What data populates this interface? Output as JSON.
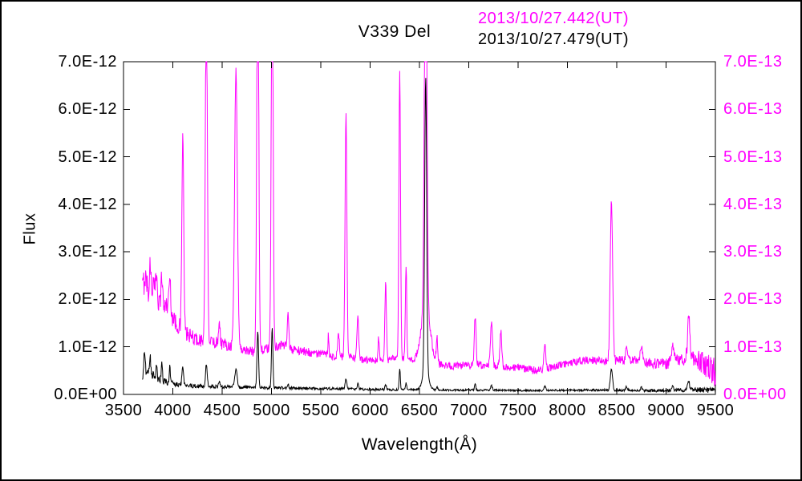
{
  "legend": [
    {
      "label": "2013/10/27.442(UT)",
      "color": "#ff00ff"
    },
    {
      "label": "2013/10/27.479(UT)",
      "color": "#000000"
    }
  ],
  "axes": {
    "x": {
      "min": 3500,
      "max": 9500,
      "tick_step": 500,
      "ticks": [
        "3500",
        "4000",
        "4500",
        "5000",
        "5500",
        "6000",
        "6500",
        "7000",
        "7500",
        "8000",
        "8500",
        "9000",
        "9500"
      ]
    },
    "y_left": {
      "color": "#000000",
      "ticks": [
        "0.0E+00",
        "1.0E-12",
        "2.0E-12",
        "3.0E-12",
        "4.0E-12",
        "5.0E-12",
        "6.0E-12",
        "7.0E-12"
      ]
    },
    "y_right": {
      "color": "#ff00ff",
      "ticks": [
        "0.0E+00",
        "1.0E-13",
        "2.0E-13",
        "3.0E-13",
        "4.0E-13",
        "5.0E-13",
        "6.0E-13",
        "7.0E-13"
      ]
    }
  },
  "chart_data": {
    "type": "line",
    "title": "V339 Del",
    "xlabel": "Wavelength(Å)",
    "ylabel": "Flux",
    "x_range": [
      3500,
      9500
    ],
    "x_tick_step": 500,
    "grid": false,
    "legend_position": "top-right",
    "left_y": {
      "lim": [
        0,
        7.0
      ],
      "unit_scale": "1e-12"
    },
    "right_y": {
      "lim": [
        0,
        7.0
      ],
      "unit_scale": "1e-13"
    },
    "series": [
      {
        "name": "2013/10/27.442(UT)",
        "color": "#ff00ff",
        "axis": "right",
        "unit_scale": "1e-13",
        "y_lim": [
          0,
          7.0
        ],
        "x_start": 3692,
        "x_end": 9500,
        "step": 4,
        "continuum": [
          [
            3690,
            2.2
          ],
          [
            3720,
            2.5
          ],
          [
            3760,
            2.1
          ],
          [
            3800,
            2.3
          ],
          [
            3850,
            2.0
          ],
          [
            3900,
            1.85
          ],
          [
            3950,
            1.9
          ],
          [
            4000,
            1.6
          ],
          [
            4050,
            1.45
          ],
          [
            4150,
            1.25
          ],
          [
            4250,
            1.15
          ],
          [
            4400,
            1.1
          ],
          [
            4550,
            1.05
          ],
          [
            4700,
            0.95
          ],
          [
            4800,
            0.9
          ],
          [
            4950,
            0.95
          ],
          [
            5100,
            1.05
          ],
          [
            5200,
            0.95
          ],
          [
            5350,
            0.9
          ],
          [
            5500,
            0.85
          ],
          [
            5650,
            0.8
          ],
          [
            5800,
            0.78
          ],
          [
            5950,
            0.72
          ],
          [
            6100,
            0.7
          ],
          [
            6250,
            0.75
          ],
          [
            6450,
            0.7
          ],
          [
            6650,
            0.65
          ],
          [
            6800,
            0.6
          ],
          [
            6950,
            0.6
          ],
          [
            7100,
            0.62
          ],
          [
            7250,
            0.6
          ],
          [
            7400,
            0.58
          ],
          [
            7550,
            0.55
          ],
          [
            7700,
            0.5
          ],
          [
            7900,
            0.6
          ],
          [
            8050,
            0.68
          ],
          [
            8200,
            0.72
          ],
          [
            8350,
            0.7
          ],
          [
            8550,
            0.72
          ],
          [
            8700,
            0.72
          ],
          [
            8850,
            0.65
          ],
          [
            9000,
            0.65
          ],
          [
            9150,
            0.75
          ],
          [
            9250,
            0.8
          ],
          [
            9350,
            0.7
          ],
          [
            9450,
            0.55
          ],
          [
            9500,
            0.45
          ]
        ],
        "peaks": [
          [
            3770,
            0.6,
            7
          ],
          [
            3835,
            0.5,
            7
          ],
          [
            3889,
            0.65,
            7
          ],
          [
            3970,
            0.7,
            8
          ],
          [
            4101,
            4.15,
            9
          ],
          [
            4340,
            7.5,
            10
          ],
          [
            4471,
            0.5,
            8
          ],
          [
            4640,
            5.8,
            14
          ],
          [
            4861,
            9.0,
            10
          ],
          [
            5007,
            9.0,
            9
          ],
          [
            5169,
            0.7,
            8
          ],
          [
            5577,
            0.45,
            5
          ],
          [
            5680,
            0.5,
            8
          ],
          [
            5755,
            5.1,
            9
          ],
          [
            5876,
            0.85,
            9
          ],
          [
            6087,
            0.5,
            7
          ],
          [
            6157,
            1.6,
            8
          ],
          [
            6300,
            6.1,
            8
          ],
          [
            6364,
            2.0,
            7
          ],
          [
            6563,
            9.5,
            12
          ],
          [
            6563,
            1.2,
            45
          ],
          [
            6678,
            0.55,
            7
          ],
          [
            7065,
            1.05,
            9
          ],
          [
            7230,
            0.9,
            10
          ],
          [
            7325,
            0.75,
            9
          ],
          [
            7772,
            0.5,
            10
          ],
          [
            8446,
            3.35,
            12
          ],
          [
            8600,
            0.35,
            10
          ],
          [
            8750,
            0.3,
            10
          ],
          [
            9069,
            0.35,
            10
          ],
          [
            9229,
            0.95,
            10
          ]
        ],
        "noise": [
          [
            3690,
            0.3
          ],
          [
            3900,
            0.22
          ],
          [
            4200,
            0.15
          ],
          [
            5000,
            0.1
          ],
          [
            6000,
            0.08
          ],
          [
            7000,
            0.08
          ],
          [
            8000,
            0.08
          ],
          [
            8800,
            0.1
          ],
          [
            9200,
            0.15
          ],
          [
            9400,
            0.25
          ],
          [
            9500,
            0.3
          ]
        ]
      },
      {
        "name": "2013/10/27.479(UT)",
        "color": "#000000",
        "axis": "left",
        "unit_scale": "1e-12",
        "y_lim": [
          0,
          7.0
        ],
        "x_start": 3692,
        "x_end": 9500,
        "step": 4,
        "continuum": [
          [
            3690,
            0.35
          ],
          [
            3720,
            0.5
          ],
          [
            3760,
            0.45
          ],
          [
            3800,
            0.4
          ],
          [
            3850,
            0.3
          ],
          [
            3900,
            0.28
          ],
          [
            3950,
            0.25
          ],
          [
            4000,
            0.22
          ],
          [
            4100,
            0.2
          ],
          [
            4200,
            0.18
          ],
          [
            4300,
            0.17
          ],
          [
            4500,
            0.16
          ],
          [
            4700,
            0.15
          ],
          [
            4900,
            0.14
          ],
          [
            5100,
            0.14
          ],
          [
            5300,
            0.13
          ],
          [
            5500,
            0.12
          ],
          [
            5700,
            0.12
          ],
          [
            5900,
            0.11
          ],
          [
            6100,
            0.1
          ],
          [
            6500,
            0.1
          ],
          [
            6900,
            0.09
          ],
          [
            7300,
            0.09
          ],
          [
            7700,
            0.08
          ],
          [
            8100,
            0.09
          ],
          [
            8500,
            0.09
          ],
          [
            8900,
            0.08
          ],
          [
            9300,
            0.1
          ],
          [
            9500,
            0.08
          ]
        ],
        "peaks": [
          [
            3712,
            0.45,
            6
          ],
          [
            3770,
            0.35,
            6
          ],
          [
            3835,
            0.3,
            6
          ],
          [
            3889,
            0.35,
            6
          ],
          [
            3970,
            0.35,
            6
          ],
          [
            4101,
            0.38,
            8
          ],
          [
            4340,
            0.48,
            8
          ],
          [
            4471,
            0.12,
            6
          ],
          [
            4640,
            0.38,
            12
          ],
          [
            4861,
            1.2,
            8
          ],
          [
            5007,
            1.28,
            7
          ],
          [
            5169,
            0.1,
            6
          ],
          [
            5755,
            0.22,
            8
          ],
          [
            5876,
            0.12,
            7
          ],
          [
            6157,
            0.1,
            7
          ],
          [
            6300,
            0.45,
            6
          ],
          [
            6364,
            0.15,
            6
          ],
          [
            6563,
            6.17,
            10
          ],
          [
            6563,
            0.4,
            30
          ],
          [
            6678,
            0.08,
            6
          ],
          [
            7065,
            0.12,
            7
          ],
          [
            7230,
            0.1,
            8
          ],
          [
            7772,
            0.1,
            8
          ],
          [
            8446,
            0.45,
            11
          ],
          [
            8600,
            0.08,
            8
          ],
          [
            8750,
            0.06,
            8
          ],
          [
            9069,
            0.08,
            8
          ],
          [
            9229,
            0.2,
            9
          ]
        ],
        "noise": [
          [
            3690,
            0.1
          ],
          [
            3900,
            0.07
          ],
          [
            4200,
            0.045
          ],
          [
            5000,
            0.03
          ],
          [
            6000,
            0.025
          ],
          [
            7000,
            0.02
          ],
          [
            8000,
            0.02
          ],
          [
            9000,
            0.03
          ],
          [
            9300,
            0.05
          ],
          [
            9500,
            0.07
          ]
        ]
      }
    ]
  }
}
